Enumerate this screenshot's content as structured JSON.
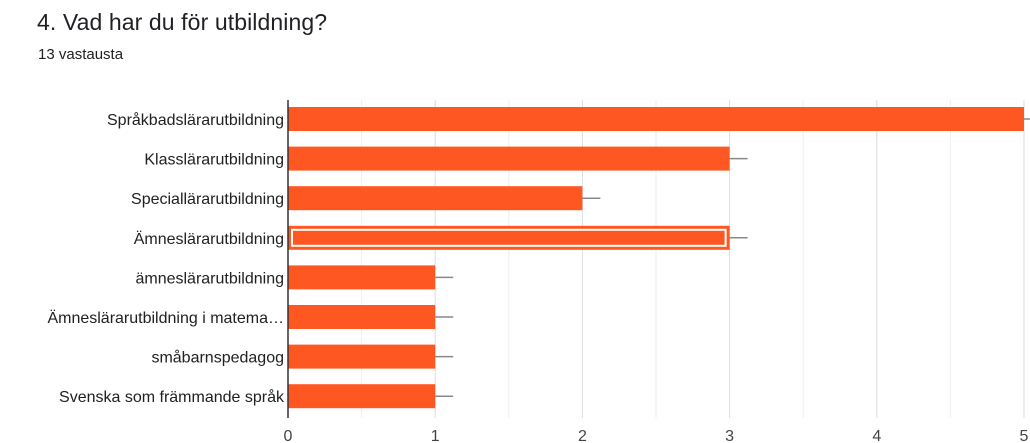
{
  "question": {
    "title": "4. Vad har du för utbildning?",
    "response_count": "13 vastausta"
  },
  "colors": {
    "bar": "#ff5722",
    "grid": "#e8e8e8",
    "axis": "#333333",
    "error_bar": "#888888",
    "highlight": "#ffffff"
  },
  "chart_data": {
    "type": "bar",
    "orientation": "horizontal",
    "categories": [
      "Språkbadslärarutbildning",
      "Klasslärarutbildning",
      "Speciallärarutbildning",
      "Ämneslärarutbildning",
      "ämneslärarutbildning",
      "Ämneslärarutbildning i matema…",
      "småbarnspedagog",
      "Svenska som främmande språk"
    ],
    "values": [
      5,
      3,
      2,
      3,
      1,
      1,
      1,
      1
    ],
    "xlim": [
      0,
      5
    ],
    "xticks": [
      "0",
      "1",
      "2",
      "3",
      "4",
      "5"
    ],
    "grid": true,
    "highlighted_index": 3,
    "title": "",
    "xlabel": "",
    "ylabel": ""
  }
}
